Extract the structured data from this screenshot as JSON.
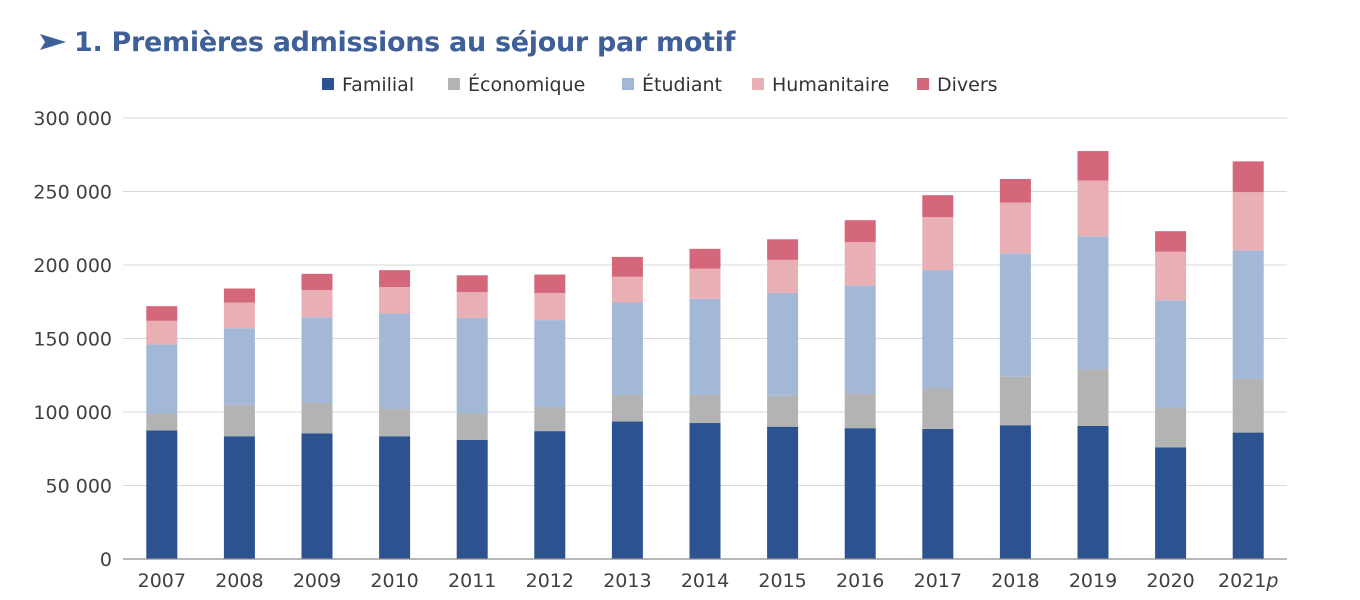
{
  "title": "1. Premières admissions au séjour par motif",
  "chart_data": {
    "type": "bar",
    "stacked": true,
    "title": "1. Premières admissions au séjour par motif",
    "xlabel": "",
    "ylabel": "",
    "ylim": [
      0,
      300000
    ],
    "y_ticks": [
      0,
      50000,
      100000,
      150000,
      200000,
      250000,
      300000
    ],
    "y_tick_labels": [
      "0",
      "50 000",
      "100 000",
      "150 000",
      "200 000",
      "250 000",
      "300 000"
    ],
    "grid": true,
    "legend_position": "top",
    "categories": [
      "2007",
      "2008",
      "2009",
      "2010",
      "2011",
      "2012",
      "2013",
      "2014",
      "2015",
      "2016",
      "2017",
      "2018",
      "2019",
      "2020",
      "2021p"
    ],
    "series": [
      {
        "name": "Familial",
        "color": "#2c5290",
        "values": [
          87500,
          83500,
          85500,
          83500,
          81000,
          87000,
          93500,
          92500,
          90000,
          89000,
          88500,
          91000,
          90500,
          76000,
          86000
        ]
      },
      {
        "name": "Économique",
        "color": "#b3b3b3",
        "values": [
          11500,
          21500,
          20500,
          18500,
          18000,
          16500,
          18000,
          19000,
          21000,
          23500,
          27500,
          33000,
          38500,
          27000,
          36500
        ]
      },
      {
        "name": "Étudiant",
        "color": "#a3b8d6",
        "values": [
          47000,
          52000,
          58500,
          65000,
          65000,
          59000,
          63000,
          65500,
          70000,
          73500,
          80500,
          84000,
          90500,
          73000,
          87500
        ]
      },
      {
        "name": "Humanitaire",
        "color": "#e8b0b4",
        "values": [
          16000,
          17500,
          18500,
          18000,
          17500,
          18500,
          17500,
          20500,
          22500,
          29500,
          36000,
          34500,
          38000,
          33000,
          39500
        ]
      },
      {
        "name": "Divers",
        "color": "#d4687a",
        "values": [
          10000,
          9500,
          11000,
          11500,
          11500,
          12500,
          13500,
          13500,
          14000,
          15000,
          15000,
          16000,
          20000,
          14000,
          21000
        ]
      }
    ]
  }
}
